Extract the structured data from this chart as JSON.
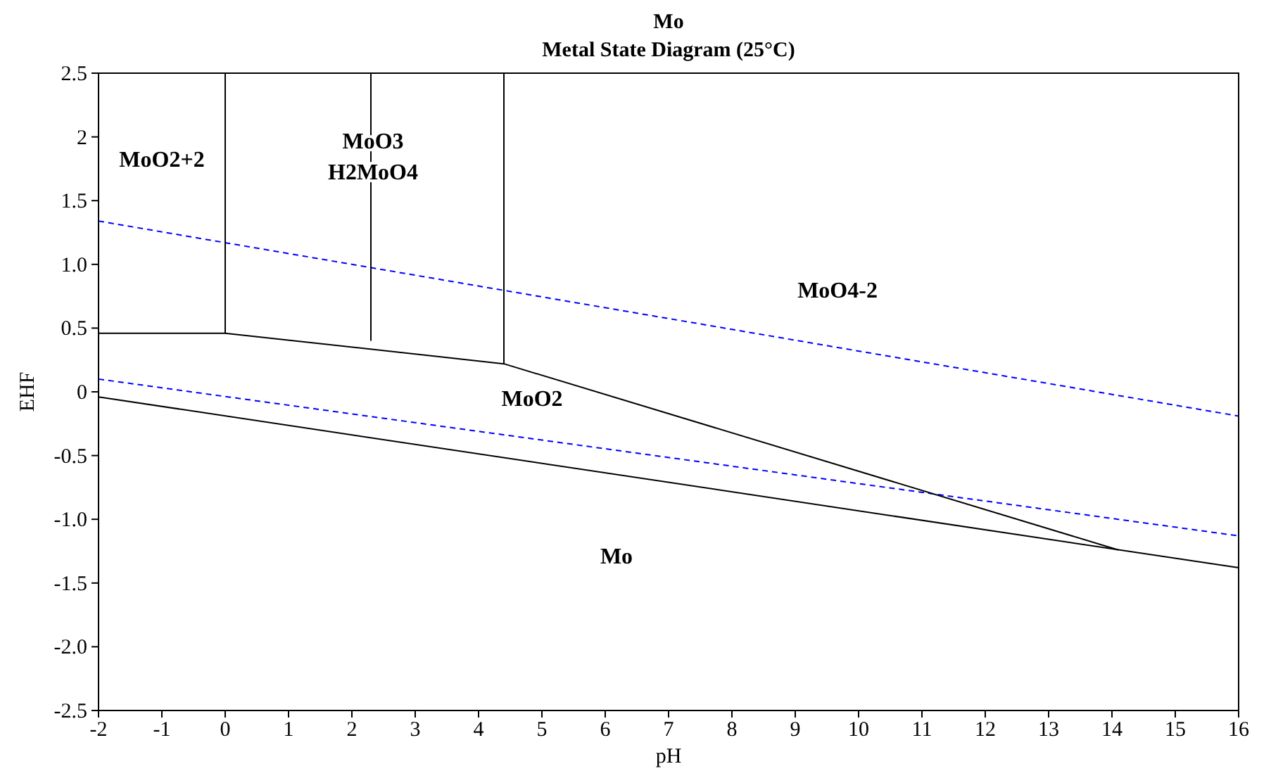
{
  "chart_data": {
    "type": "line",
    "title": "Mo",
    "subtitle": "Metal State Diagram (25°C)",
    "xlabel": "pH",
    "ylabel": "EHF",
    "xlim": [
      -2,
      16
    ],
    "ylim": [
      -2.5,
      2.5
    ],
    "xticks": [
      -2,
      -1,
      0,
      1,
      2,
      3,
      4,
      5,
      6,
      7,
      8,
      9,
      10,
      11,
      12,
      13,
      14,
      15,
      16
    ],
    "yticks": [
      {
        "value": 2.5,
        "label": "2.5"
      },
      {
        "value": 2,
        "label": "2"
      },
      {
        "value": 1.5,
        "label": "1.5"
      },
      {
        "value": 1,
        "label": "1.0"
      },
      {
        "value": 0.5,
        "label": "0.5"
      },
      {
        "value": 0,
        "label": "0"
      },
      {
        "value": -0.5,
        "label": "-0.5"
      },
      {
        "value": -1,
        "label": "-1.0"
      },
      {
        "value": -1.5,
        "label": "-1.5"
      },
      {
        "value": -2,
        "label": "-2.0"
      },
      {
        "value": -2.5,
        "label": "-2.5"
      }
    ],
    "series": [
      {
        "color": "#0000ff",
        "line_style": "dashed",
        "x": [
          -2,
          16
        ],
        "values": [
          1.34,
          -0.19
        ]
      },
      {
        "color": "#0000ff",
        "line_style": "dashed",
        "x": [
          -2,
          16
        ],
        "values": [
          0.1,
          -1.13
        ]
      },
      {
        "color": "#000000",
        "line_style": "solid",
        "x": [
          -2,
          16
        ],
        "values": [
          -0.04,
          -1.38
        ]
      },
      {
        "color": "#000000",
        "line_style": "solid",
        "x": [
          -2,
          0,
          4.4,
          14.1
        ],
        "values": [
          0.46,
          0.46,
          0.22,
          -1.24
        ]
      },
      {
        "color": "#000000",
        "line_style": "solid",
        "x": [
          0,
          0
        ],
        "values": [
          0.46,
          2.5
        ]
      },
      {
        "color": "#000000",
        "line_style": "solid",
        "x": [
          2.3,
          2.3
        ],
        "values": [
          0.4,
          2.5
        ]
      },
      {
        "color": "#000000",
        "line_style": "solid",
        "x": [
          4.4,
          4.4
        ],
        "values": [
          0.22,
          2.5
        ]
      }
    ],
    "annotations": [
      "MoO2+2",
      "MoO3",
      "H2MoO4",
      "MoO4-2",
      "MoO2",
      "Mo"
    ]
  }
}
